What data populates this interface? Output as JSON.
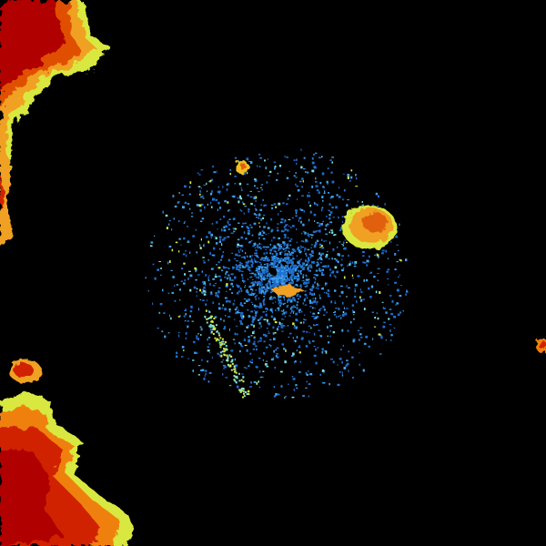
{
  "radar": {
    "background": "#000000",
    "palette": {
      "low_blue": "#1f6fd0",
      "light_blue": "#3fa0e8",
      "cyan": "#7fe0d8",
      "yellow_green": "#d8e840",
      "yellow": "#f0d020",
      "orange": "#f08010",
      "red": "#d02000",
      "dark_red": "#b00000"
    }
  }
}
